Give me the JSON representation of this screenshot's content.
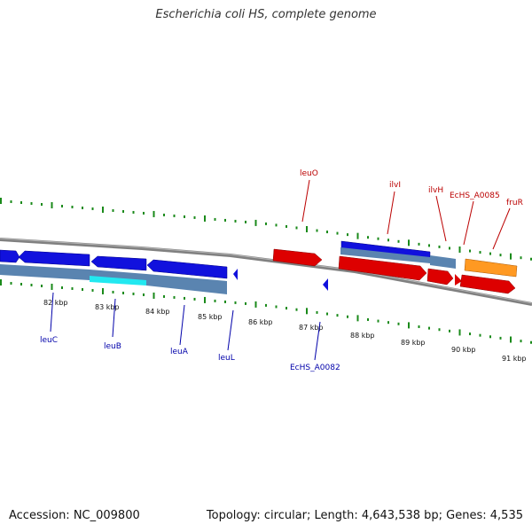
{
  "title": "Escherichia coli HS, complete genome",
  "footer": {
    "accession": "Accession: NC_009800",
    "topology": "Topology: circular; Length: 4,643,538 bp; Genes: 4,535"
  },
  "colors": {
    "backbone": "#8a8a8a",
    "tick": "#1a8a1a",
    "forward_gene": "#dd0000",
    "reverse_gene": "#1111dd",
    "cds_band": "#5a84b0",
    "highlight": "#22e8f0",
    "other_gene": "#ff9922",
    "forward_label": "#bb0000",
    "reverse_label": "#0000aa"
  },
  "ticks": [
    "82 kbp",
    "83 kbp",
    "84 kbp",
    "85 kbp",
    "86 kbp",
    "87 kbp",
    "88 kbp",
    "89 kbp",
    "90 kbp",
    "91 kbp"
  ],
  "forward_genes": [
    "leuO",
    "ilvI",
    "ilvH",
    "EcHS_A0085",
    "fruR"
  ],
  "reverse_genes": [
    "leuC",
    "leuB",
    "leuA",
    "leuL",
    "EcHS_A0082"
  ]
}
